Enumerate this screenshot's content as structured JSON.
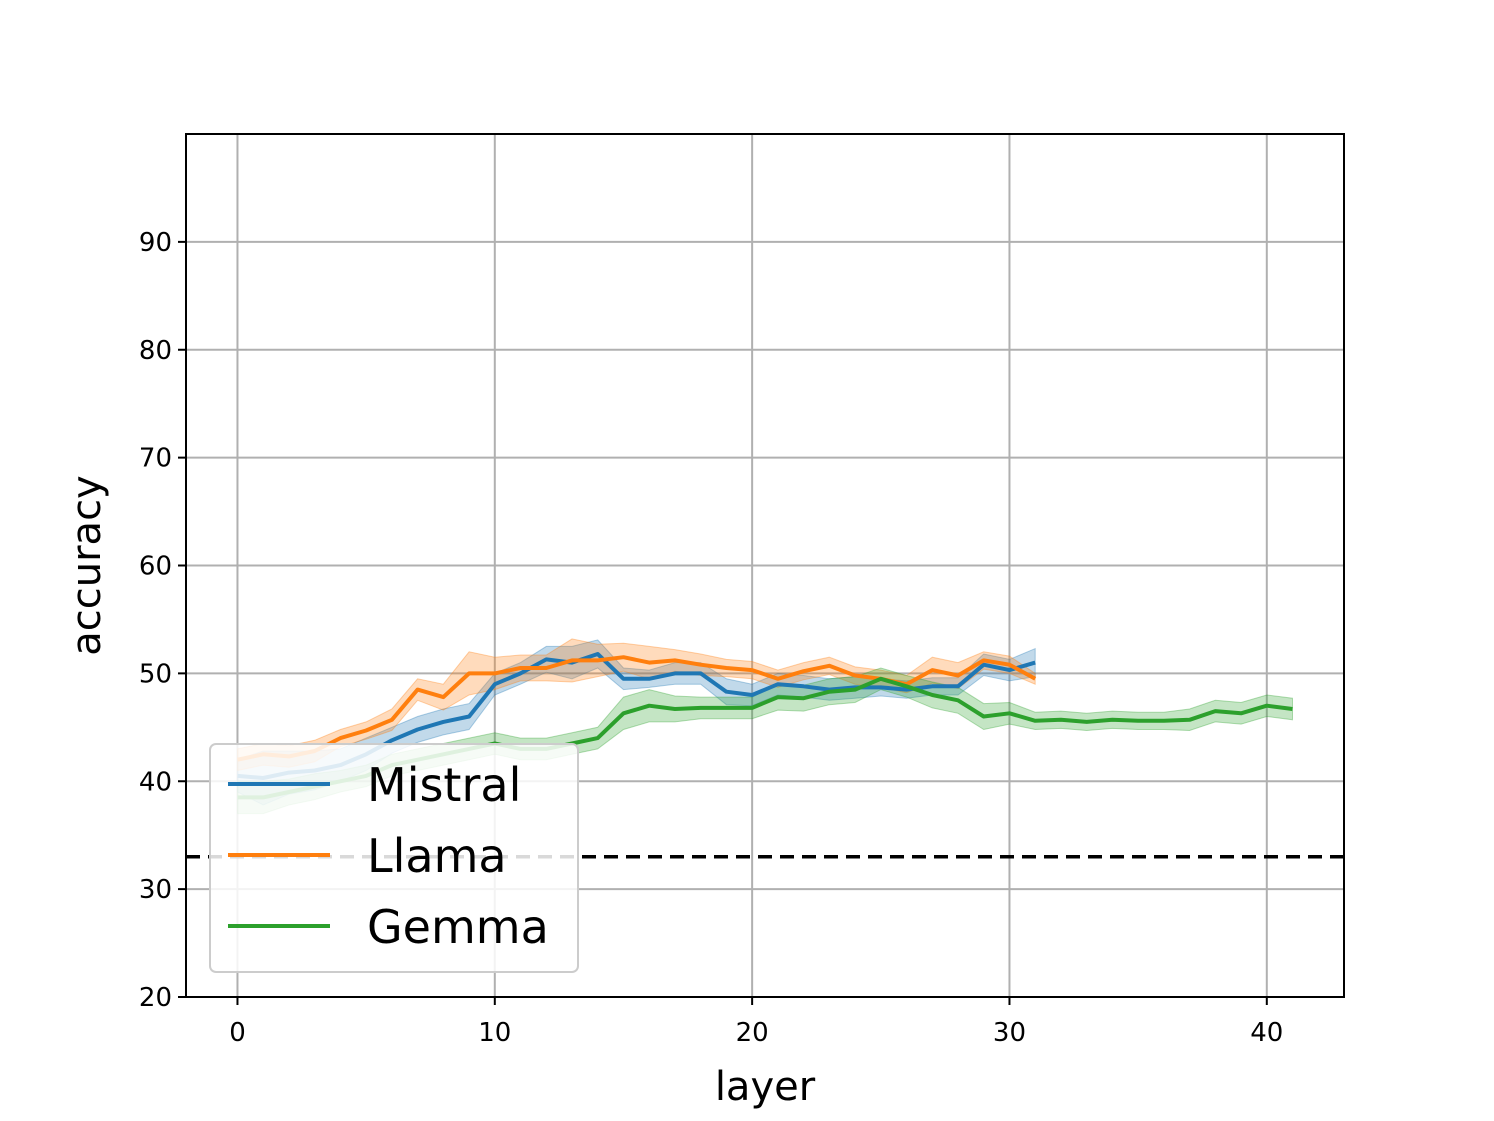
{
  "chart_data": {
    "type": "line",
    "title": "",
    "xlabel": "layer",
    "ylabel": "accuracy",
    "xlim": [
      -2,
      43
    ],
    "ylim": [
      20,
      100
    ],
    "xticks": [
      0,
      10,
      20,
      30,
      40
    ],
    "yticks": [
      20,
      30,
      40,
      50,
      60,
      70,
      80,
      90
    ],
    "grid": true,
    "legend_position": "lower-left",
    "reference_line": {
      "y": 33,
      "style": "dashed",
      "color": "#000000"
    },
    "series": [
      {
        "name": "Mistral",
        "color": "#1f77b4",
        "x": [
          0,
          1,
          2,
          3,
          4,
          5,
          6,
          7,
          8,
          9,
          10,
          11,
          12,
          13,
          14,
          15,
          16,
          17,
          18,
          19,
          20,
          21,
          22,
          23,
          24,
          25,
          26,
          27,
          28,
          29,
          30,
          31
        ],
        "y": [
          40.5,
          40.3,
          40.8,
          41.0,
          41.5,
          42.5,
          43.8,
          44.8,
          45.5,
          46.0,
          49.0,
          50.0,
          51.3,
          51.0,
          51.8,
          49.5,
          49.5,
          50.0,
          50.0,
          48.3,
          48.0,
          49.0,
          48.8,
          48.5,
          48.7,
          48.7,
          48.5,
          48.8,
          48.8,
          50.8,
          50.3,
          51.0
        ],
        "band": [
          1.5,
          2.5,
          2.0,
          1.8,
          1.5,
          1.5,
          1.2,
          1.2,
          1.2,
          1.2,
          1.0,
          1.0,
          1.2,
          1.5,
          1.3,
          1.0,
          0.8,
          1.0,
          1.0,
          1.2,
          1.0,
          1.0,
          1.0,
          1.0,
          1.0,
          0.8,
          0.8,
          0.8,
          0.8,
          1.0,
          1.0,
          1.3
        ]
      },
      {
        "name": "Llama",
        "color": "#ff7f0e",
        "x": [
          0,
          1,
          2,
          3,
          4,
          5,
          6,
          7,
          8,
          9,
          10,
          11,
          12,
          13,
          14,
          15,
          16,
          17,
          18,
          19,
          20,
          21,
          22,
          23,
          24,
          25,
          26,
          27,
          28,
          29,
          30,
          31
        ],
        "y": [
          42.0,
          42.5,
          42.3,
          42.8,
          44.0,
          44.7,
          45.7,
          48.5,
          47.8,
          50.0,
          50.0,
          50.5,
          50.5,
          51.2,
          51.2,
          51.5,
          51.0,
          51.2,
          50.8,
          50.5,
          50.3,
          49.5,
          50.2,
          50.7,
          49.8,
          49.5,
          49.0,
          50.3,
          49.8,
          51.2,
          50.8,
          49.5
        ],
        "band": [
          1.0,
          1.0,
          1.0,
          1.0,
          0.8,
          0.8,
          1.0,
          1.0,
          1.2,
          2.0,
          1.5,
          1.2,
          1.2,
          2.0,
          1.5,
          1.3,
          1.5,
          1.0,
          1.0,
          0.8,
          0.8,
          0.8,
          0.8,
          0.8,
          0.8,
          0.8,
          0.8,
          1.2,
          1.2,
          0.8,
          0.8,
          0.5
        ]
      },
      {
        "name": "Gemma",
        "color": "#2ca02c",
        "x": [
          0,
          1,
          2,
          3,
          4,
          5,
          6,
          7,
          8,
          9,
          10,
          11,
          12,
          13,
          14,
          15,
          16,
          17,
          18,
          19,
          20,
          21,
          22,
          23,
          24,
          25,
          26,
          27,
          28,
          29,
          30,
          31,
          32,
          33,
          34,
          35,
          36,
          37,
          38,
          39,
          40,
          41
        ],
        "y": [
          38.5,
          38.5,
          39.0,
          39.5,
          40.0,
          40.5,
          41.5,
          42.0,
          42.5,
          43.0,
          43.5,
          43.0,
          43.0,
          43.5,
          44.0,
          46.3,
          47.0,
          46.7,
          46.8,
          46.8,
          46.8,
          47.8,
          47.7,
          48.3,
          48.5,
          49.5,
          48.8,
          48.0,
          47.5,
          46.0,
          46.3,
          45.6,
          45.7,
          45.5,
          45.7,
          45.6,
          45.6,
          45.7,
          46.5,
          46.3,
          47.0,
          46.7
        ],
        "band": [
          1.5,
          1.5,
          1.2,
          1.2,
          1.0,
          1.0,
          1.0,
          1.0,
          1.0,
          1.0,
          1.0,
          1.0,
          1.0,
          1.0,
          1.0,
          1.5,
          1.5,
          1.2,
          1.0,
          1.0,
          1.0,
          1.2,
          1.2,
          1.2,
          1.2,
          1.0,
          1.0,
          1.2,
          1.2,
          1.2,
          1.0,
          0.8,
          0.8,
          0.8,
          0.8,
          0.8,
          0.8,
          1.0,
          1.0,
          1.0,
          1.0,
          1.0
        ]
      }
    ]
  }
}
